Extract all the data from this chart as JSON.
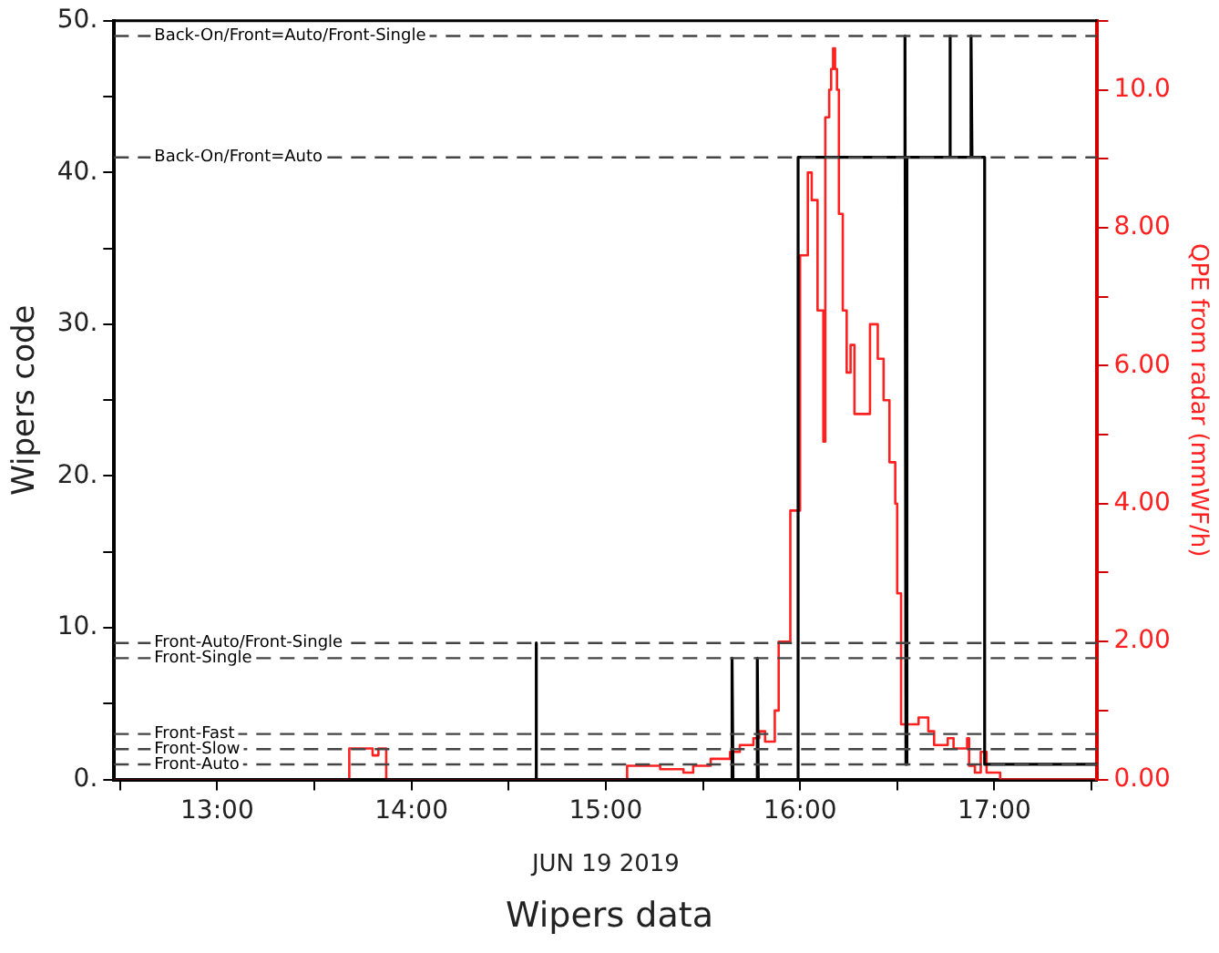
{
  "chart_data": {
    "type": "line",
    "title": "Wipers data",
    "xlabel": "JUN 19 2019",
    "ylabel": "Wipers code",
    "y2label": "QPE from radar (mmWF/h)",
    "xlim": [
      12.47,
      17.53
    ],
    "xticks": [
      {
        "value": 12.5,
        "label": null
      },
      {
        "value": 13,
        "label": "13:00"
      },
      {
        "value": 13.5,
        "label": null
      },
      {
        "value": 14,
        "label": "14:00"
      },
      {
        "value": 14.5,
        "label": null
      },
      {
        "value": 15,
        "label": "15:00"
      },
      {
        "value": 15.5,
        "label": null
      },
      {
        "value": 16,
        "label": "16:00"
      },
      {
        "value": 16.5,
        "label": null
      },
      {
        "value": 17,
        "label": "17:00"
      },
      {
        "value": 17.5,
        "label": null
      }
    ],
    "ylim": [
      0,
      50
    ],
    "yticks": [
      {
        "value": 0,
        "label": "0."
      },
      {
        "value": 5,
        "label": null
      },
      {
        "value": 10,
        "label": "10."
      },
      {
        "value": 15,
        "label": null
      },
      {
        "value": 20,
        "label": "20."
      },
      {
        "value": 25,
        "label": null
      },
      {
        "value": 30,
        "label": "30."
      },
      {
        "value": 35,
        "label": null
      },
      {
        "value": 40,
        "label": "40."
      },
      {
        "value": 45,
        "label": null
      },
      {
        "value": 50,
        "label": "50."
      }
    ],
    "y2lim": [
      0,
      11
    ],
    "y2ticks": [
      {
        "value": 0,
        "label": "0.00"
      },
      {
        "value": 1,
        "label": null
      },
      {
        "value": 2,
        "label": "2.00"
      },
      {
        "value": 3,
        "label": null
      },
      {
        "value": 4,
        "label": "4.00"
      },
      {
        "value": 5,
        "label": null
      },
      {
        "value": 6,
        "label": "6.00"
      },
      {
        "value": 7,
        "label": null
      },
      {
        "value": 8,
        "label": "8.00"
      },
      {
        "value": 9,
        "label": null
      },
      {
        "value": 10,
        "label": "10.0"
      },
      {
        "value": 11,
        "label": null
      }
    ],
    "grid": false,
    "legend": false,
    "marker": "none",
    "series": [
      {
        "type": "line",
        "color": "#000000",
        "x": [
          12.47,
          14.64,
          14.64,
          14.645,
          15.65,
          15.65,
          15.655,
          15.78,
          15.78,
          15.785,
          15.99,
          15.99,
          16.54,
          16.54,
          16.545,
          16.55,
          16.77,
          16.77,
          16.775,
          16.88,
          16.88,
          16.885,
          16.95,
          16.95,
          17.53
        ],
        "values": [
          0,
          0,
          9,
          0,
          0,
          8,
          0,
          0,
          8,
          0,
          0,
          41,
          41,
          49,
          1,
          41,
          41,
          49,
          41,
          41,
          49,
          41,
          41,
          1,
          1
        ]
      },
      {
        "type": "step",
        "axis": "y2",
        "color": "#ff2020",
        "x": [
          12.47,
          13.68,
          13.8,
          13.83,
          13.87,
          15.11,
          15.28,
          15.4,
          15.45,
          15.54,
          15.64,
          15.69,
          15.76,
          15.79,
          15.82,
          15.87,
          15.89,
          15.95,
          16.0,
          16.04,
          16.06,
          16.09,
          16.11,
          16.12,
          16.13,
          16.15,
          16.16,
          16.17,
          16.18,
          16.19,
          16.2,
          16.22,
          16.24,
          16.26,
          16.28,
          16.36,
          16.4,
          16.43,
          16.46,
          16.49,
          16.5,
          16.52,
          16.61,
          16.66,
          16.69,
          16.76,
          16.79,
          16.86,
          16.87,
          16.9,
          16.93,
          16.96,
          17.03,
          17.53
        ],
        "values": [
          0,
          0.45,
          0.35,
          0.45,
          0,
          0.2,
          0.15,
          0.1,
          0.2,
          0.3,
          0.4,
          0.5,
          0.6,
          0.7,
          0.55,
          1.0,
          2.0,
          3.9,
          7.6,
          8.8,
          8.4,
          6.8,
          6.8,
          4.9,
          9.6,
          10.0,
          10.3,
          10.6,
          10.3,
          10.0,
          8.2,
          6.8,
          5.9,
          6.3,
          5.3,
          6.6,
          6.1,
          5.5,
          4.6,
          4.0,
          2.7,
          0.8,
          0.9,
          0.7,
          0.5,
          0.6,
          0.45,
          0.6,
          0.2,
          0.1,
          0.4,
          0.1,
          0,
          0
        ]
      }
    ],
    "ref_lines": [
      {
        "axis": "y",
        "value": 1,
        "label": "Front-Auto",
        "line_style": "dashed",
        "color": "#444444"
      },
      {
        "axis": "y",
        "value": 2,
        "label": "Front-Slow",
        "line_style": "dashed",
        "color": "#444444"
      },
      {
        "axis": "y",
        "value": 3,
        "label": "Front-Fast",
        "line_style": "dashed",
        "color": "#444444"
      },
      {
        "axis": "y",
        "value": 8,
        "label": "Front-Single",
        "line_style": "dashed",
        "color": "#444444"
      },
      {
        "axis": "y",
        "value": 9,
        "label": "Front-Auto/Front-Single",
        "line_style": "dashed",
        "color": "#444444"
      },
      {
        "axis": "y",
        "value": 41,
        "label": "Back-On/Front=Auto",
        "line_style": "dashed",
        "color": "#444444"
      },
      {
        "axis": "y",
        "value": 49,
        "label": "Back-On/Front=Auto/Front-Single",
        "line_style": "dashed",
        "color": "#444444"
      }
    ]
  }
}
